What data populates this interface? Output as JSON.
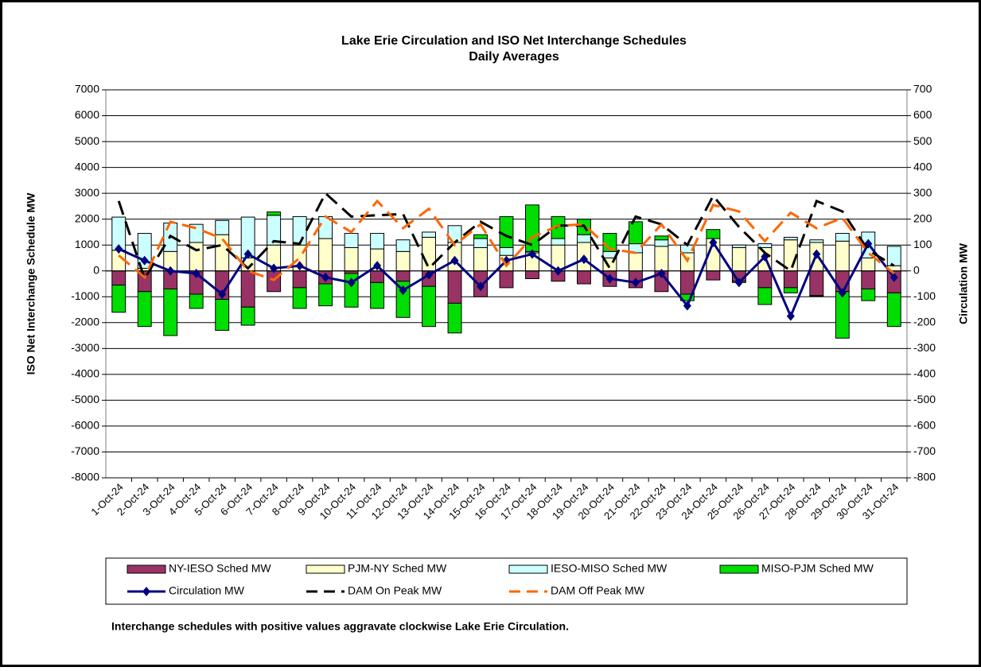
{
  "chart_data": {
    "type": "combo",
    "title": "Lake Erie Circulation and ISO Net Interchange Schedules",
    "subtitle": "Daily Averages",
    "y_label": "ISO Net Interchange Schedule MW",
    "y2_label": "Circulation MW",
    "note": "Interchange schedules with positive values aggravate clockwise Lake Erie Circulation.",
    "categories": [
      "1-Oct-24",
      "2-Oct-24",
      "3-Oct-24",
      "4-Oct-24",
      "5-Oct-24",
      "6-Oct-24",
      "7-Oct-24",
      "8-Oct-24",
      "9-Oct-24",
      "10-Oct-24",
      "11-Oct-24",
      "12-Oct-24",
      "13-Oct-24",
      "14-Oct-24",
      "15-Oct-24",
      "16-Oct-24",
      "17-Oct-24",
      "18-Oct-24",
      "19-Oct-24",
      "20-Oct-24",
      "21-Oct-24",
      "22-Oct-24",
      "23-Oct-24",
      "24-Oct-24",
      "25-Oct-24",
      "26-Oct-24",
      "27-Oct-24",
      "28-Oct-24",
      "29-Oct-24",
      "30-Oct-24",
      "31-Oct-24"
    ],
    "ylim": [
      -8000,
      7000
    ],
    "yticks": [
      -8000,
      -7000,
      -6000,
      -5000,
      -4000,
      -3000,
      -2000,
      -1000,
      0,
      1000,
      2000,
      3000,
      4000,
      5000,
      6000,
      7000
    ],
    "y2lim": [
      -800,
      700
    ],
    "y2ticks": [
      -800,
      -700,
      -600,
      -500,
      -400,
      -300,
      -200,
      -100,
      0,
      100,
      200,
      300,
      400,
      500,
      600,
      700
    ],
    "grid": true,
    "series": [
      {
        "name": "NY-IESO Sched MW",
        "type": "bar",
        "color": "#993366",
        "values": [
          -550,
          -800,
          -700,
          -900,
          -1100,
          -1400,
          -800,
          -650,
          -500,
          -100,
          -450,
          -400,
          -600,
          -1250,
          -1000,
          -650,
          -300,
          -400,
          -500,
          -600,
          -650,
          -800,
          -900,
          -350,
          -400,
          -650,
          -650,
          -950,
          -800,
          -700,
          -850
        ]
      },
      {
        "name": "PJM-NY Sched MW",
        "type": "bar",
        "color": "#FFFFCC",
        "values": [
          800,
          100,
          750,
          1100,
          1400,
          500,
          1000,
          1000,
          1250,
          900,
          850,
          750,
          1300,
          1100,
          900,
          600,
          700,
          1000,
          1100,
          500,
          700,
          950,
          700,
          1250,
          900,
          900,
          1200,
          1100,
          1150,
          500,
          200
        ]
      },
      {
        "name": "IESO-MISO Sched MW",
        "type": "bar",
        "color": "#CCFFFF",
        "values": [
          1280,
          1350,
          1100,
          700,
          550,
          1580,
          1150,
          1100,
          850,
          550,
          600,
          450,
          200,
          650,
          350,
          300,
          50,
          250,
          300,
          250,
          350,
          250,
          300,
          0,
          100,
          150,
          100,
          100,
          300,
          1000,
          750
        ]
      },
      {
        "name": "MISO-PJM Sched MW",
        "type": "bar",
        "color": "#00DD00",
        "values": [
          -1050,
          -1350,
          -1800,
          -550,
          -1200,
          -700,
          130,
          -800,
          -850,
          -1300,
          -1000,
          -1400,
          -1550,
          -1150,
          150,
          1200,
          1800,
          850,
          600,
          700,
          850,
          150,
          -250,
          350,
          -50,
          -650,
          -200,
          -30,
          -1800,
          -450,
          -1300
        ]
      },
      {
        "name": "Circulation MW",
        "type": "line",
        "axis": "y2",
        "color": "#000080",
        "marker": "diamond",
        "values": [
          85,
          40,
          0,
          -10,
          -90,
          65,
          10,
          20,
          -25,
          -45,
          20,
          -75,
          -15,
          40,
          -60,
          40,
          65,
          0,
          45,
          -30,
          -45,
          -10,
          -135,
          110,
          -45,
          55,
          -175,
          65,
          -85,
          105,
          -25
        ]
      },
      {
        "name": "DAM On Peak MW",
        "type": "line",
        "axis": "y2",
        "color": "#000000",
        "dashed": true,
        "values": [
          270,
          -30,
          135,
          80,
          100,
          10,
          115,
          105,
          300,
          210,
          215,
          220,
          10,
          110,
          190,
          135,
          100,
          175,
          175,
          10,
          210,
          180,
          100,
          290,
          170,
          70,
          0,
          270,
          230,
          80,
          20
        ]
      },
      {
        "name": "DAM Off Peak MW",
        "type": "line",
        "axis": "y2",
        "color": "#FF6600",
        "dashed": true,
        "values": [
          60,
          -25,
          190,
          165,
          125,
          0,
          -35,
          50,
          210,
          150,
          270,
          165,
          240,
          100,
          180,
          20,
          130,
          175,
          180,
          85,
          70,
          180,
          40,
          255,
          230,
          115,
          225,
          165,
          205,
          70,
          -10
        ]
      }
    ]
  }
}
